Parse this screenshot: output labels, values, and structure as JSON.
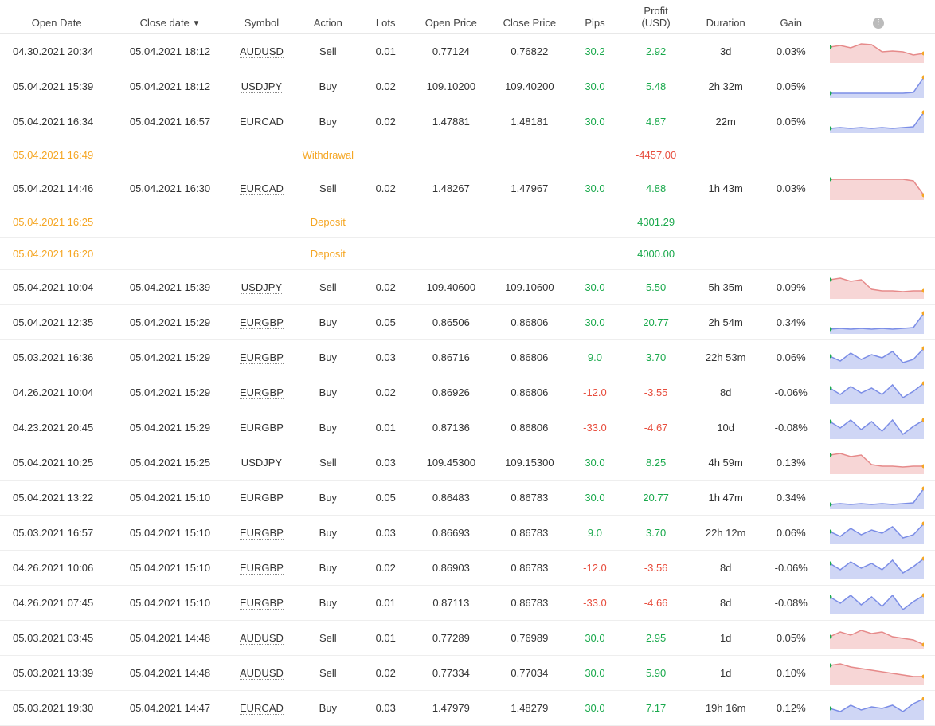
{
  "header": {
    "open_date": "Open Date",
    "close_date": "Close date",
    "symbol": "Symbol",
    "action": "Action",
    "lots": "Lots",
    "open_price": "Open Price",
    "close_price": "Close Price",
    "pips": "Pips",
    "profit_l1": "Profit",
    "profit_l2": "(USD)",
    "duration": "Duration",
    "gain": "Gain",
    "sort_indicator": "▼"
  },
  "colors": {
    "positive": "#1aa94c",
    "negative": "#e74c3c",
    "transaction": "#f5a623",
    "spark_buy_fill": "#cfd6f5",
    "spark_buy_stroke": "#7b8de6",
    "spark_sell_fill": "#f7d6d6",
    "spark_sell_stroke": "#e68a8a",
    "spark_mark_start": "#1aa94c",
    "spark_mark_end": "#f5a623"
  },
  "rows": [
    {
      "type": "trade",
      "open": "04.30.2021 20:34",
      "close": "05.04.2021 18:12",
      "symbol": "AUDUSD",
      "action": "Sell",
      "lots": "0.01",
      "op": "0.77124",
      "cp": "0.76822",
      "pips": "30.2",
      "pips_sign": "pos",
      "profit": "2.92",
      "profit_sign": "pos",
      "dur": "3d",
      "gain": "0.03%",
      "spark": {
        "shape": "sell",
        "points": [
          12,
          10,
          13,
          8,
          9,
          18,
          17,
          18,
          22,
          20
        ]
      }
    },
    {
      "type": "trade",
      "open": "05.04.2021 15:39",
      "close": "05.04.2021 18:12",
      "symbol": "USDJPY",
      "action": "Buy",
      "lots": "0.02",
      "op": "109.10200",
      "cp": "109.40200",
      "pips": "30.0",
      "pips_sign": "pos",
      "profit": "5.48",
      "profit_sign": "pos",
      "dur": "2h 32m",
      "gain": "0.05%",
      "spark": {
        "shape": "buy",
        "points": [
          26,
          26,
          26,
          26,
          26,
          26,
          26,
          26,
          25,
          6
        ]
      }
    },
    {
      "type": "trade",
      "open": "05.04.2021 16:34",
      "close": "05.04.2021 16:57",
      "symbol": "EURCAD",
      "action": "Buy",
      "lots": "0.02",
      "op": "1.47881",
      "cp": "1.48181",
      "pips": "30.0",
      "pips_sign": "pos",
      "profit": "4.87",
      "profit_sign": "pos",
      "dur": "22m",
      "gain": "0.05%",
      "spark": {
        "shape": "buy",
        "points": [
          26,
          25,
          26,
          25,
          26,
          25,
          26,
          25,
          24,
          6
        ]
      }
    },
    {
      "type": "tx",
      "open": "05.04.2021 16:49",
      "action": "Withdrawal",
      "profit": "-4457.00",
      "profit_sign": "neg"
    },
    {
      "type": "trade",
      "open": "05.04.2021 14:46",
      "close": "05.04.2021 16:30",
      "symbol": "EURCAD",
      "action": "Sell",
      "lots": "0.02",
      "op": "1.48267",
      "cp": "1.47967",
      "pips": "30.0",
      "pips_sign": "pos",
      "profit": "4.88",
      "profit_sign": "pos",
      "dur": "1h 43m",
      "gain": "0.03%",
      "spark": {
        "shape": "sell",
        "points": [
          6,
          6,
          6,
          6,
          6,
          6,
          6,
          6,
          8,
          26
        ]
      }
    },
    {
      "type": "tx",
      "open": "05.04.2021 16:25",
      "action": "Deposit",
      "profit": "4301.29",
      "profit_sign": "pos"
    },
    {
      "type": "tx",
      "open": "05.04.2021 16:20",
      "action": "Deposit",
      "profit": "4000.00",
      "profit_sign": "pos"
    },
    {
      "type": "trade",
      "open": "05.04.2021 10:04",
      "close": "05.04.2021 15:39",
      "symbol": "USDJPY",
      "action": "Sell",
      "lots": "0.02",
      "op": "109.40600",
      "cp": "109.10600",
      "pips": "30.0",
      "pips_sign": "pos",
      "profit": "5.50",
      "profit_sign": "pos",
      "dur": "5h 35m",
      "gain": "0.09%",
      "spark": {
        "shape": "sell",
        "points": [
          8,
          6,
          10,
          8,
          20,
          22,
          22,
          23,
          22,
          22
        ]
      }
    },
    {
      "type": "trade",
      "open": "05.04.2021 12:35",
      "close": "05.04.2021 15:29",
      "symbol": "EURGBP",
      "action": "Buy",
      "lots": "0.05",
      "op": "0.86506",
      "cp": "0.86806",
      "pips": "30.0",
      "pips_sign": "pos",
      "profit": "20.77",
      "profit_sign": "pos",
      "dur": "2h 54m",
      "gain": "0.34%",
      "spark": {
        "shape": "buy",
        "points": [
          26,
          25,
          26,
          25,
          26,
          25,
          26,
          25,
          24,
          6
        ]
      }
    },
    {
      "type": "trade",
      "open": "05.03.2021 16:36",
      "close": "05.04.2021 15:29",
      "symbol": "EURGBP",
      "action": "Buy",
      "lots": "0.03",
      "op": "0.86716",
      "cp": "0.86806",
      "pips": "9.0",
      "pips_sign": "pos",
      "profit": "3.70",
      "profit_sign": "pos",
      "dur": "22h 53m",
      "gain": "0.06%",
      "spark": {
        "shape": "buy",
        "points": [
          16,
          22,
          12,
          20,
          14,
          18,
          10,
          24,
          20,
          6
        ]
      }
    },
    {
      "type": "trade",
      "open": "04.26.2021 10:04",
      "close": "05.04.2021 15:29",
      "symbol": "EURGBP",
      "action": "Buy",
      "lots": "0.02",
      "op": "0.86926",
      "cp": "0.86806",
      "pips": "-12.0",
      "pips_sign": "neg",
      "profit": "-3.55",
      "profit_sign": "neg",
      "dur": "8d",
      "gain": "-0.06%",
      "spark": {
        "shape": "buy",
        "points": [
          12,
          20,
          10,
          18,
          12,
          20,
          8,
          24,
          16,
          6
        ]
      }
    },
    {
      "type": "trade",
      "open": "04.23.2021 20:45",
      "close": "05.04.2021 15:29",
      "symbol": "EURGBP",
      "action": "Buy",
      "lots": "0.01",
      "op": "0.87136",
      "cp": "0.86806",
      "pips": "-33.0",
      "pips_sign": "neg",
      "profit": "-4.67",
      "profit_sign": "neg",
      "dur": "10d",
      "gain": "-0.08%",
      "spark": {
        "shape": "buy",
        "points": [
          10,
          18,
          8,
          20,
          10,
          22,
          8,
          26,
          16,
          8
        ]
      }
    },
    {
      "type": "trade",
      "open": "05.04.2021 10:25",
      "close": "05.04.2021 15:25",
      "symbol": "USDJPY",
      "action": "Sell",
      "lots": "0.03",
      "op": "109.45300",
      "cp": "109.15300",
      "pips": "30.0",
      "pips_sign": "pos",
      "profit": "8.25",
      "profit_sign": "pos",
      "dur": "4h 59m",
      "gain": "0.13%",
      "spark": {
        "shape": "sell",
        "points": [
          8,
          6,
          10,
          8,
          20,
          22,
          22,
          23,
          22,
          22
        ]
      }
    },
    {
      "type": "trade",
      "open": "05.04.2021 13:22",
      "close": "05.04.2021 15:10",
      "symbol": "EURGBP",
      "action": "Buy",
      "lots": "0.05",
      "op": "0.86483",
      "cp": "0.86783",
      "pips": "30.0",
      "pips_sign": "pos",
      "profit": "20.77",
      "profit_sign": "pos",
      "dur": "1h 47m",
      "gain": "0.34%",
      "spark": {
        "shape": "buy",
        "points": [
          26,
          25,
          26,
          25,
          26,
          25,
          26,
          25,
          24,
          6
        ]
      }
    },
    {
      "type": "trade",
      "open": "05.03.2021 16:57",
      "close": "05.04.2021 15:10",
      "symbol": "EURGBP",
      "action": "Buy",
      "lots": "0.03",
      "op": "0.86693",
      "cp": "0.86783",
      "pips": "9.0",
      "pips_sign": "pos",
      "profit": "3.70",
      "profit_sign": "pos",
      "dur": "22h 12m",
      "gain": "0.06%",
      "spark": {
        "shape": "buy",
        "points": [
          16,
          22,
          12,
          20,
          14,
          18,
          10,
          24,
          20,
          6
        ]
      }
    },
    {
      "type": "trade",
      "open": "04.26.2021 10:06",
      "close": "05.04.2021 15:10",
      "symbol": "EURGBP",
      "action": "Buy",
      "lots": "0.02",
      "op": "0.86903",
      "cp": "0.86783",
      "pips": "-12.0",
      "pips_sign": "neg",
      "profit": "-3.56",
      "profit_sign": "neg",
      "dur": "8d",
      "gain": "-0.06%",
      "spark": {
        "shape": "buy",
        "points": [
          12,
          20,
          10,
          18,
          12,
          20,
          8,
          24,
          16,
          6
        ]
      }
    },
    {
      "type": "trade",
      "open": "04.26.2021 07:45",
      "close": "05.04.2021 15:10",
      "symbol": "EURGBP",
      "action": "Buy",
      "lots": "0.01",
      "op": "0.87113",
      "cp": "0.86783",
      "pips": "-33.0",
      "pips_sign": "neg",
      "profit": "-4.66",
      "profit_sign": "neg",
      "dur": "8d",
      "gain": "-0.08%",
      "spark": {
        "shape": "buy",
        "points": [
          10,
          18,
          8,
          20,
          10,
          22,
          8,
          26,
          16,
          8
        ]
      }
    },
    {
      "type": "trade",
      "open": "05.03.2021 03:45",
      "close": "05.04.2021 14:48",
      "symbol": "AUDUSD",
      "action": "Sell",
      "lots": "0.01",
      "op": "0.77289",
      "cp": "0.76989",
      "pips": "30.0",
      "pips_sign": "pos",
      "profit": "2.95",
      "profit_sign": "pos",
      "dur": "1d",
      "gain": "0.05%",
      "spark": {
        "shape": "sell",
        "points": [
          16,
          10,
          14,
          8,
          12,
          10,
          16,
          18,
          20,
          26
        ]
      }
    },
    {
      "type": "trade",
      "open": "05.03.2021 13:39",
      "close": "05.04.2021 14:48",
      "symbol": "AUDUSD",
      "action": "Sell",
      "lots": "0.02",
      "op": "0.77334",
      "cp": "0.77034",
      "pips": "30.0",
      "pips_sign": "pos",
      "profit": "5.90",
      "profit_sign": "pos",
      "dur": "1d",
      "gain": "0.10%",
      "spark": {
        "shape": "sell",
        "points": [
          8,
          6,
          10,
          12,
          14,
          16,
          18,
          20,
          22,
          22
        ]
      }
    },
    {
      "type": "trade",
      "open": "05.03.2021 19:30",
      "close": "05.04.2021 14:47",
      "symbol": "EURCAD",
      "action": "Buy",
      "lots": "0.03",
      "op": "1.47979",
      "cp": "1.48279",
      "pips": "30.0",
      "pips_sign": "pos",
      "profit": "7.17",
      "profit_sign": "pos",
      "dur": "19h 16m",
      "gain": "0.12%",
      "spark": {
        "shape": "buy",
        "points": [
          18,
          22,
          14,
          20,
          16,
          18,
          14,
          22,
          12,
          6
        ]
      }
    }
  ]
}
